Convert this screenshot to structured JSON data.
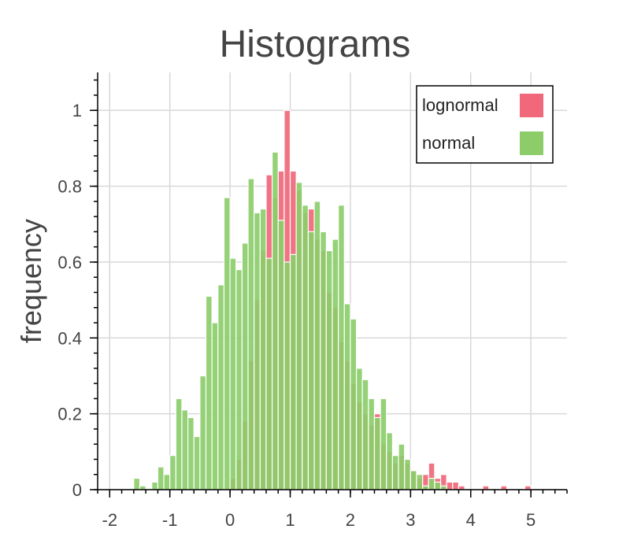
{
  "chart_data": {
    "type": "histogram",
    "title": "Histograms",
    "xlabel": "",
    "ylabel": "frequency",
    "xlim": [
      -2.2,
      5.6
    ],
    "ylim": [
      0,
      1.1
    ],
    "xticks": [
      -2,
      -1,
      0,
      1,
      2,
      3,
      4,
      5
    ],
    "yticks": [
      0,
      0.2,
      0.4,
      0.6,
      0.8,
      1
    ],
    "ytick_labels": [
      "0",
      "0.2",
      "0.4",
      "0.6",
      "0.8",
      "1"
    ],
    "grid": true,
    "legend_position": "top-right",
    "bin_width": 0.1,
    "series": [
      {
        "name": "lognormal",
        "color": "#f0687a",
        "bins": [
          {
            "x0": 0.0,
            "value": 0.03
          },
          {
            "x0": 0.1,
            "value": 0.08
          },
          {
            "x0": 0.2,
            "value": 0.18
          },
          {
            "x0": 0.3,
            "value": 0.34
          },
          {
            "x0": 0.4,
            "value": 0.5
          },
          {
            "x0": 0.5,
            "value": 0.63
          },
          {
            "x0": 0.6,
            "value": 0.83
          },
          {
            "x0": 0.7,
            "value": 0.77
          },
          {
            "x0": 0.8,
            "value": 0.84
          },
          {
            "x0": 0.9,
            "value": 1.0
          },
          {
            "x0": 1.0,
            "value": 0.84
          },
          {
            "x0": 1.1,
            "value": 0.79
          },
          {
            "x0": 1.2,
            "value": 0.73
          },
          {
            "x0": 1.3,
            "value": 0.74
          },
          {
            "x0": 1.4,
            "value": 0.66
          },
          {
            "x0": 1.5,
            "value": 0.63
          },
          {
            "x0": 1.6,
            "value": 0.52
          },
          {
            "x0": 1.7,
            "value": 0.48
          },
          {
            "x0": 1.8,
            "value": 0.39
          },
          {
            "x0": 1.9,
            "value": 0.34
          },
          {
            "x0": 2.0,
            "value": 0.28
          },
          {
            "x0": 2.1,
            "value": 0.23
          },
          {
            "x0": 2.2,
            "value": 0.2
          },
          {
            "x0": 2.3,
            "value": 0.17
          },
          {
            "x0": 2.4,
            "value": 0.2
          },
          {
            "x0": 2.5,
            "value": 0.12
          },
          {
            "x0": 2.6,
            "value": 0.1
          },
          {
            "x0": 2.7,
            "value": 0.07
          },
          {
            "x0": 2.8,
            "value": 0.09
          },
          {
            "x0": 2.9,
            "value": 0.07
          },
          {
            "x0": 3.0,
            "value": 0.05
          },
          {
            "x0": 3.1,
            "value": 0.03
          },
          {
            "x0": 3.2,
            "value": 0.04
          },
          {
            "x0": 3.3,
            "value": 0.07
          },
          {
            "x0": 3.4,
            "value": 0.03
          },
          {
            "x0": 3.5,
            "value": 0.04
          },
          {
            "x0": 3.6,
            "value": 0.02
          },
          {
            "x0": 3.7,
            "value": 0.02
          },
          {
            "x0": 3.8,
            "value": 0.01
          },
          {
            "x0": 4.2,
            "value": 0.01
          },
          {
            "x0": 4.5,
            "value": 0.01
          },
          {
            "x0": 4.9,
            "value": 0.01
          }
        ]
      },
      {
        "name": "normal",
        "color": "#8ccd6a",
        "bins": [
          {
            "x0": -1.6,
            "value": 0.03
          },
          {
            "x0": -1.5,
            "value": 0.01
          },
          {
            "x0": -1.3,
            "value": 0.02
          },
          {
            "x0": -1.2,
            "value": 0.06
          },
          {
            "x0": -1.1,
            "value": 0.04
          },
          {
            "x0": -1.0,
            "value": 0.09
          },
          {
            "x0": -0.9,
            "value": 0.24
          },
          {
            "x0": -0.8,
            "value": 0.21
          },
          {
            "x0": -0.7,
            "value": 0.19
          },
          {
            "x0": -0.6,
            "value": 0.14
          },
          {
            "x0": -0.5,
            "value": 0.3
          },
          {
            "x0": -0.4,
            "value": 0.51
          },
          {
            "x0": -0.3,
            "value": 0.44
          },
          {
            "x0": -0.2,
            "value": 0.54
          },
          {
            "x0": -0.1,
            "value": 0.77
          },
          {
            "x0": 0.0,
            "value": 0.61
          },
          {
            "x0": 0.1,
            "value": 0.58
          },
          {
            "x0": 0.2,
            "value": 0.65
          },
          {
            "x0": 0.3,
            "value": 0.82
          },
          {
            "x0": 0.4,
            "value": 0.73
          },
          {
            "x0": 0.5,
            "value": 0.74
          },
          {
            "x0": 0.6,
            "value": 0.61
          },
          {
            "x0": 0.7,
            "value": 0.89
          },
          {
            "x0": 0.8,
            "value": 0.71
          },
          {
            "x0": 0.9,
            "value": 0.6
          },
          {
            "x0": 1.0,
            "value": 0.62
          },
          {
            "x0": 1.1,
            "value": 0.81
          },
          {
            "x0": 1.2,
            "value": 0.75
          },
          {
            "x0": 1.3,
            "value": 0.68
          },
          {
            "x0": 1.4,
            "value": 0.76
          },
          {
            "x0": 1.5,
            "value": 0.68
          },
          {
            "x0": 1.6,
            "value": 0.63
          },
          {
            "x0": 1.7,
            "value": 0.66
          },
          {
            "x0": 1.8,
            "value": 0.75
          },
          {
            "x0": 1.9,
            "value": 0.49
          },
          {
            "x0": 2.0,
            "value": 0.45
          },
          {
            "x0": 2.1,
            "value": 0.32
          },
          {
            "x0": 2.2,
            "value": 0.29
          },
          {
            "x0": 2.3,
            "value": 0.24
          },
          {
            "x0": 2.4,
            "value": 0.19
          },
          {
            "x0": 2.5,
            "value": 0.24
          },
          {
            "x0": 2.6,
            "value": 0.15
          },
          {
            "x0": 2.7,
            "value": 0.09
          },
          {
            "x0": 2.8,
            "value": 0.12
          },
          {
            "x0": 2.9,
            "value": 0.08
          },
          {
            "x0": 3.0,
            "value": 0.05
          },
          {
            "x0": 3.1,
            "value": 0.04
          },
          {
            "x0": 3.2,
            "value": 0.01
          },
          {
            "x0": 3.3,
            "value": 0.03
          },
          {
            "x0": 3.4,
            "value": 0.02
          },
          {
            "x0": 3.5,
            "value": 0.01
          }
        ]
      }
    ]
  }
}
